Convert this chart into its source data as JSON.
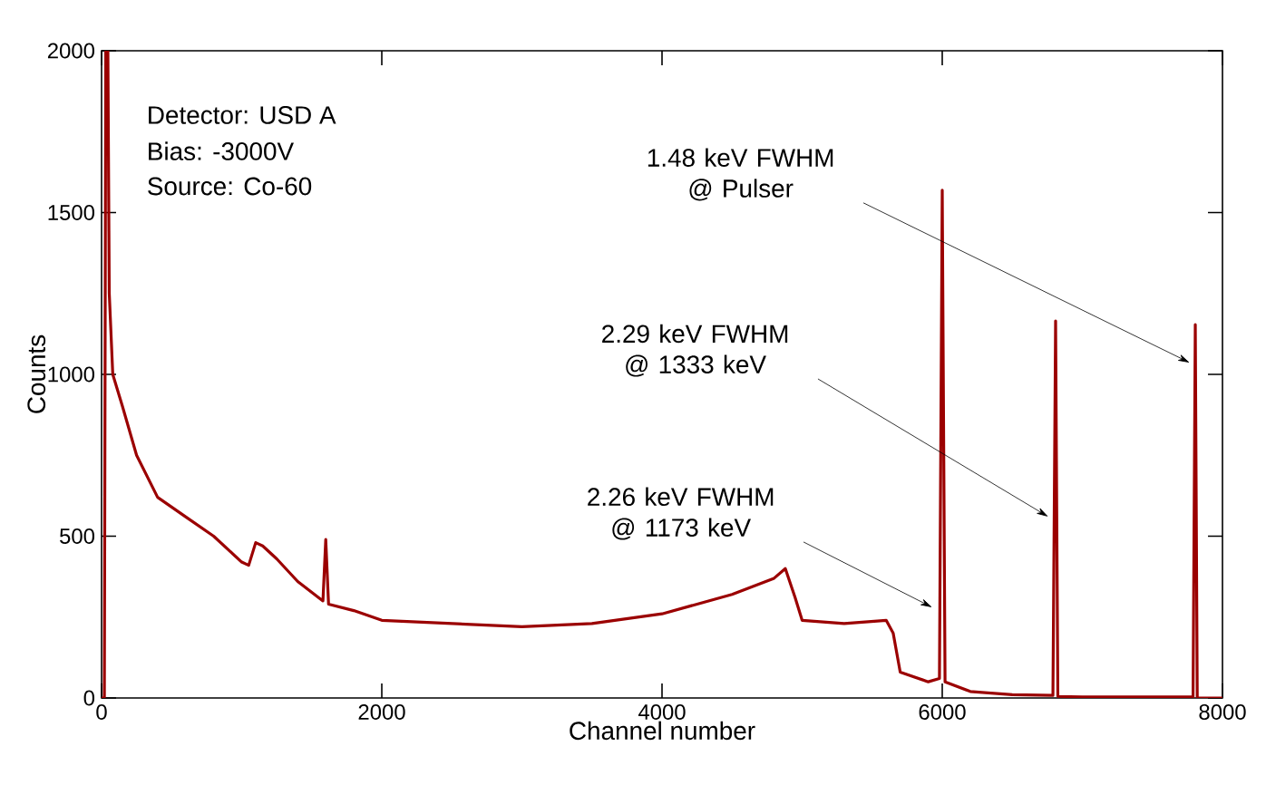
{
  "chart_data": {
    "type": "line",
    "xlabel": "Channel number",
    "ylabel": "Counts",
    "xlim": [
      0,
      8000
    ],
    "ylim": [
      0,
      2000
    ],
    "xticks": [
      0,
      2000,
      4000,
      6000,
      8000
    ],
    "yticks": [
      0,
      500,
      1000,
      1500,
      2000
    ],
    "grid": false,
    "marker": "none",
    "line_style": "solid",
    "series": [
      {
        "color": "#9b0000",
        "x": [
          0,
          20,
          30,
          45,
          55,
          80,
          150,
          250,
          400,
          600,
          800,
          1000,
          1050,
          1100,
          1150,
          1250,
          1400,
          1580,
          1600,
          1620,
          1800,
          2000,
          2500,
          3000,
          3500,
          4000,
          4500,
          4800,
          4880,
          4950,
          5000,
          5300,
          5600,
          5650,
          5700,
          5900,
          5980,
          6000,
          6020,
          6200,
          6500,
          6790,
          6809,
          6825,
          7000,
          7500,
          7790,
          7806,
          7820,
          8000
        ],
        "values": [
          0,
          0,
          2000,
          2000,
          1250,
          1000,
          900,
          750,
          620,
          560,
          500,
          420,
          410,
          480,
          470,
          430,
          360,
          300,
          490,
          290,
          270,
          240,
          230,
          220,
          230,
          260,
          320,
          370,
          400,
          310,
          240,
          230,
          240,
          200,
          80,
          50,
          60,
          1569,
          50,
          20,
          10,
          8,
          1165,
          5,
          3,
          3,
          3,
          1154,
          0,
          0
        ]
      }
    ],
    "annotations": [
      "Detector: USD A",
      "Bias: -3000V",
      "Source: Co-60",
      {
        "text": "1.48 keV FWHM @ Pulser",
        "x": 7767,
        "y": 1036
      },
      {
        "text": "2.29 keV FWHM @ 1333 keV",
        "x": 6757,
        "y": 560
      },
      {
        "text": "2.26 keV FWHM @ 1173 keV",
        "x": 5929,
        "y": 280
      }
    ]
  }
}
